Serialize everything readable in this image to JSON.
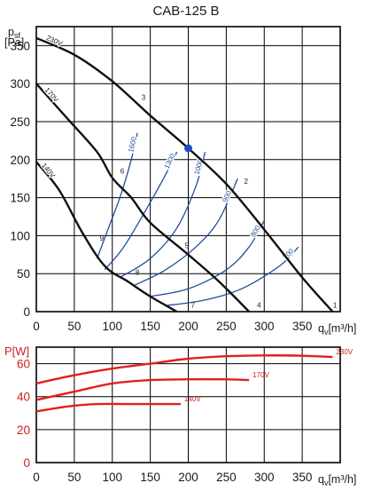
{
  "title": "CAB-125 B",
  "colors": {
    "grid": "#000000",
    "fan_curve": "#111111",
    "system_curve": "#1f4e9a",
    "power_curve": "#e02020",
    "operating_point": "#1f4ec0",
    "power_axis": "#cc1f1f"
  },
  "chart_data": [
    {
      "type": "line",
      "ylabel_main": "p",
      "ylabel_sub": "sf",
      "ylabel_unit": "[Pa]",
      "xlabel_main": "q",
      "xlabel_sub": "v",
      "xlabel_unit": "[m³/h]",
      "xlim": [
        0,
        400
      ],
      "ylim": [
        0,
        375
      ],
      "xticks": [
        "0",
        "50",
        "100",
        "150",
        "200",
        "250",
        "300",
        "350"
      ],
      "yticks": [
        "0",
        "50",
        "100",
        "150",
        "200",
        "250",
        "300",
        "350"
      ],
      "grid": true,
      "fan_curves": [
        {
          "name": "230V",
          "points": [
            [
              0,
              360
            ],
            [
              50,
              338
            ],
            [
              100,
              303
            ],
            [
              150,
              258
            ],
            [
              200,
              215
            ],
            [
              250,
              168
            ],
            [
              300,
              108
            ],
            [
              350,
              45
            ],
            [
              390,
              0
            ]
          ]
        },
        {
          "name": "170V",
          "points": [
            [
              0,
              300
            ],
            [
              40,
              255
            ],
            [
              80,
              210
            ],
            [
              100,
              176
            ],
            [
              125,
              150
            ],
            [
              150,
              117
            ],
            [
              200,
              75
            ],
            [
              240,
              40
            ],
            [
              280,
              0
            ]
          ]
        },
        {
          "name": "140V",
          "points": [
            [
              0,
              197
            ],
            [
              30,
              160
            ],
            [
              60,
              105
            ],
            [
              90,
              60
            ],
            [
              120,
              40
            ],
            [
              150,
              20
            ],
            [
              185,
              0
            ]
          ]
        }
      ],
      "system_curves": [
        {
          "name": "1600",
          "points": [
            [
              80,
              70
            ],
            [
              95,
              110
            ],
            [
              110,
              150
            ],
            [
              125,
              200
            ],
            [
              133,
              235
            ]
          ]
        },
        {
          "name": "1300",
          "points": [
            [
              90,
              55
            ],
            [
              115,
              85
            ],
            [
              145,
              135
            ],
            [
              170,
              180
            ],
            [
              185,
              210
            ]
          ]
        },
        {
          "name": "1000",
          "points": [
            [
              110,
              45
            ],
            [
              150,
              70
            ],
            [
              185,
              110
            ],
            [
              210,
              165
            ],
            [
              222,
              210
            ]
          ]
        },
        {
          "name": "900",
          "points": [
            [
              130,
              35
            ],
            [
              170,
              55
            ],
            [
              210,
              85
            ],
            [
              240,
              120
            ],
            [
              265,
              175
            ]
          ]
        },
        {
          "name": "800",
          "points": [
            [
              150,
              20
            ],
            [
              200,
              30
            ],
            [
              250,
              55
            ],
            [
              280,
              85
            ],
            [
              300,
              120
            ]
          ]
        },
        {
          "name": "700",
          "points": [
            [
              170,
              8
            ],
            [
              220,
              15
            ],
            [
              270,
              30
            ],
            [
              320,
              60
            ],
            [
              345,
              85
            ]
          ]
        }
      ],
      "point_labels": [
        {
          "label": "1",
          "x": 387,
          "y": 2
        },
        {
          "label": "2",
          "x": 270,
          "y": 165
        },
        {
          "label": "3",
          "x": 135,
          "y": 275
        },
        {
          "label": "4",
          "x": 287,
          "y": 2
        },
        {
          "label": "5",
          "x": 192,
          "y": 80
        },
        {
          "label": "6",
          "x": 107,
          "y": 178
        },
        {
          "label": "7",
          "x": 200,
          "y": 2
        },
        {
          "label": "8",
          "x": 127,
          "y": 45
        },
        {
          "label": "9",
          "x": 80,
          "y": 90
        }
      ],
      "operating_point": {
        "x": 200,
        "y": 215
      }
    },
    {
      "type": "line",
      "ylabel_main": "P",
      "ylabel_unit": "[W]",
      "xlabel_main": "q",
      "xlabel_sub": "v",
      "xlabel_unit": "[m³/h]",
      "xlim": [
        0,
        400
      ],
      "ylim": [
        0,
        70
      ],
      "xticks": [
        "0",
        "50",
        "100",
        "150",
        "200",
        "250",
        "300",
        "350"
      ],
      "yticks": [
        "0",
        "20",
        "40",
        "60"
      ],
      "grid": true,
      "series": [
        {
          "name": "230V",
          "x": [
            0,
            50,
            100,
            150,
            200,
            250,
            300,
            350,
            390
          ],
          "values": [
            48,
            53,
            57,
            60,
            63,
            64.5,
            65,
            64.8,
            64
          ]
        },
        {
          "name": "170V",
          "x": [
            0,
            50,
            100,
            150,
            200,
            250,
            280
          ],
          "values": [
            38,
            43,
            48,
            50,
            50.5,
            50.5,
            50
          ]
        },
        {
          "name": "140V",
          "x": [
            0,
            40,
            80,
            120,
            160,
            190
          ],
          "values": [
            31,
            34,
            35.5,
            35.5,
            35.5,
            35.5
          ]
        }
      ]
    }
  ]
}
